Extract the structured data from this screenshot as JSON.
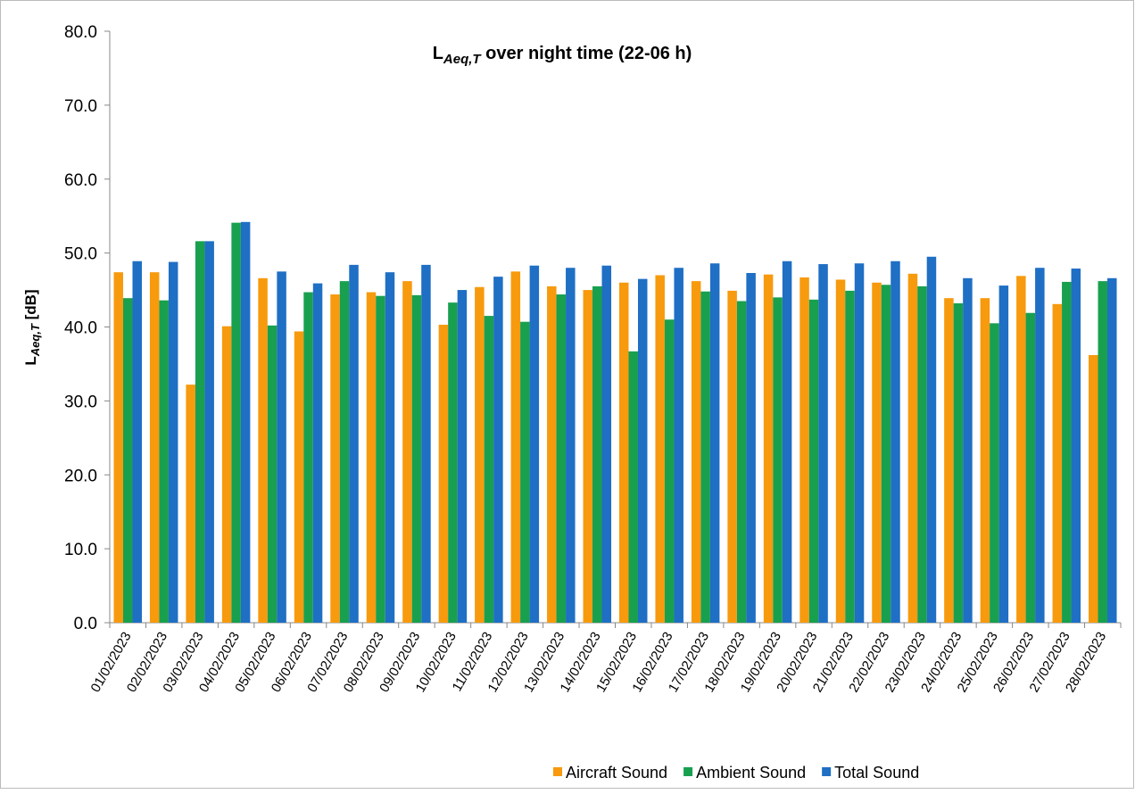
{
  "chart_data": {
    "type": "bar",
    "title": {
      "main": "L",
      "sub": "Aeq,T",
      "rest": " over night time (22-06 h)"
    },
    "y_label": {
      "main": "L",
      "sub": "Aeq,T",
      "rest": " [dB]"
    },
    "categories": [
      "01/02/2023",
      "02/02/2023",
      "03/02/2023",
      "04/02/2023",
      "05/02/2023",
      "06/02/2023",
      "07/02/2023",
      "08/02/2023",
      "09/02/2023",
      "10/02/2023",
      "11/02/2023",
      "12/02/2023",
      "13/02/2023",
      "14/02/2023",
      "15/02/2023",
      "16/02/2023",
      "17/02/2023",
      "18/02/2023",
      "19/02/2023",
      "20/02/2023",
      "21/02/2023",
      "22/02/2023",
      "23/02/2023",
      "24/02/2023",
      "25/02/2023",
      "26/02/2023",
      "27/02/2023",
      "28/02/2023"
    ],
    "series": [
      {
        "name": "Aircraft Sound",
        "color": "#f79a0d",
        "values": [
          47.4,
          47.4,
          32.2,
          40.1,
          46.6,
          39.4,
          44.4,
          44.7,
          46.2,
          40.3,
          45.4,
          47.5,
          45.5,
          45.0,
          46.0,
          47.0,
          46.2,
          44.9,
          47.1,
          46.7,
          46.4,
          46.0,
          47.2,
          43.9,
          43.9,
          46.9,
          43.1,
          36.2
        ]
      },
      {
        "name": "Ambient Sound",
        "color": "#18a04f",
        "values": [
          43.9,
          43.6,
          51.6,
          54.1,
          40.2,
          44.7,
          46.2,
          44.2,
          44.3,
          43.3,
          41.5,
          40.7,
          44.4,
          45.5,
          36.7,
          41.0,
          44.8,
          43.5,
          44.0,
          43.7,
          44.9,
          45.7,
          45.5,
          43.2,
          40.5,
          41.9,
          46.1,
          46.2
        ]
      },
      {
        "name": "Total Sound",
        "color": "#1f6fc4",
        "values": [
          48.9,
          48.8,
          51.6,
          54.2,
          47.5,
          45.9,
          48.4,
          47.4,
          48.4,
          45.0,
          46.8,
          48.3,
          48.0,
          48.3,
          46.5,
          48.0,
          48.6,
          47.3,
          48.9,
          48.5,
          48.6,
          48.9,
          49.5,
          46.6,
          45.6,
          48.0,
          47.9,
          46.6
        ]
      }
    ],
    "ylim": [
      0,
      80
    ],
    "yticks": [
      {
        "value": 0,
        "label": "0.0"
      },
      {
        "value": 10,
        "label": "10.0"
      },
      {
        "value": 20,
        "label": "20.0"
      },
      {
        "value": 30,
        "label": "30.0"
      },
      {
        "value": 40,
        "label": "40.0"
      },
      {
        "value": 50,
        "label": "50.0"
      },
      {
        "value": 60,
        "label": "60.0"
      },
      {
        "value": 70,
        "label": "70.0"
      },
      {
        "value": 80,
        "label": "80.0"
      }
    ],
    "grid": false
  }
}
